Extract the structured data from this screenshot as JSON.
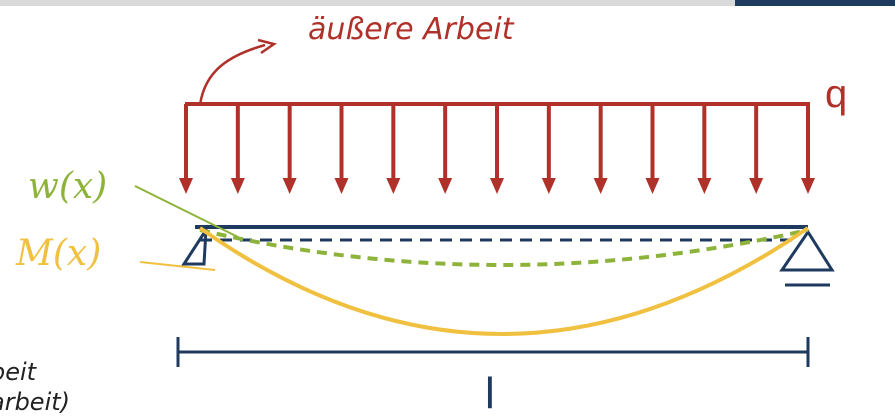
{
  "header": {
    "annotation_text": "äußere Arbeit"
  },
  "load": {
    "symbol": "q",
    "color": "#b0302a"
  },
  "beam": {
    "color": "#1f3a5f"
  },
  "deflection": {
    "label": "w(x)",
    "color": "#8db33b"
  },
  "moment": {
    "label": "M(x)",
    "color": "#f0c040"
  },
  "span": {
    "label": "l"
  },
  "side_note": {
    "line1": "beit",
    "line2": "arbeit)"
  }
}
